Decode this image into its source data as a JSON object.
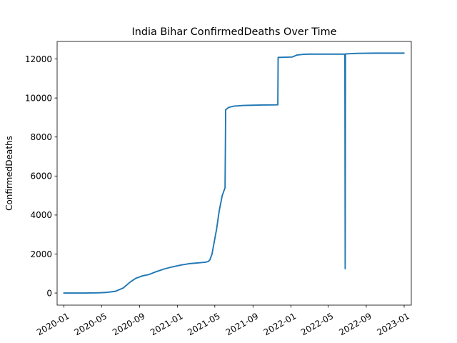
{
  "chart_data": {
    "type": "line",
    "title": "India Bihar ConfirmedDeaths Over Time",
    "xlabel": "",
    "ylabel": "ConfirmedDeaths",
    "x_ticks": [
      "2020-01",
      "2020-05",
      "2020-09",
      "2021-01",
      "2021-05",
      "2021-09",
      "2022-01",
      "2022-05",
      "2022-09",
      "2023-01"
    ],
    "y_ticks": [
      0,
      2000,
      4000,
      6000,
      8000,
      10000,
      12000
    ],
    "xlim": [
      "2019-12-10",
      "2023-01-24"
    ],
    "ylim": [
      -620,
      12900
    ],
    "grid": false,
    "series": [
      {
        "color": "#1f77b4",
        "points": [
          [
            "2020-01-01",
            0
          ],
          [
            "2020-03-01",
            0
          ],
          [
            "2020-04-20",
            10
          ],
          [
            "2020-05-15",
            30
          ],
          [
            "2020-06-15",
            90
          ],
          [
            "2020-07-10",
            260
          ],
          [
            "2020-08-01",
            560
          ],
          [
            "2020-08-20",
            760
          ],
          [
            "2020-09-10",
            880
          ],
          [
            "2020-10-01",
            950
          ],
          [
            "2020-10-25",
            1100
          ],
          [
            "2020-11-20",
            1240
          ],
          [
            "2020-12-15",
            1340
          ],
          [
            "2021-01-10",
            1430
          ],
          [
            "2021-02-10",
            1510
          ],
          [
            "2021-03-10",
            1550
          ],
          [
            "2021-04-01",
            1580
          ],
          [
            "2021-04-10",
            1620
          ],
          [
            "2021-04-15",
            1700
          ],
          [
            "2021-04-22",
            2000
          ],
          [
            "2021-04-30",
            2700
          ],
          [
            "2021-05-07",
            3300
          ],
          [
            "2021-05-15",
            4200
          ],
          [
            "2021-05-25",
            5000
          ],
          [
            "2021-06-03",
            5400
          ],
          [
            "2021-06-05",
            9400
          ],
          [
            "2021-06-15",
            9520
          ],
          [
            "2021-07-01",
            9580
          ],
          [
            "2021-08-01",
            9620
          ],
          [
            "2021-09-01",
            9630
          ],
          [
            "2021-10-01",
            9640
          ],
          [
            "2021-11-20",
            9650
          ],
          [
            "2021-11-21",
            12080
          ],
          [
            "2021-12-15",
            12090
          ],
          [
            "2022-01-05",
            12100
          ],
          [
            "2022-01-20",
            12200
          ],
          [
            "2022-02-10",
            12240
          ],
          [
            "2022-03-01",
            12250
          ],
          [
            "2022-05-01",
            12250
          ],
          [
            "2022-06-24",
            12250
          ],
          [
            "2022-06-25",
            1250
          ],
          [
            "2022-06-26",
            12260
          ],
          [
            "2022-08-01",
            12290
          ],
          [
            "2022-10-01",
            12300
          ],
          [
            "2022-12-31",
            12300
          ]
        ]
      }
    ]
  }
}
